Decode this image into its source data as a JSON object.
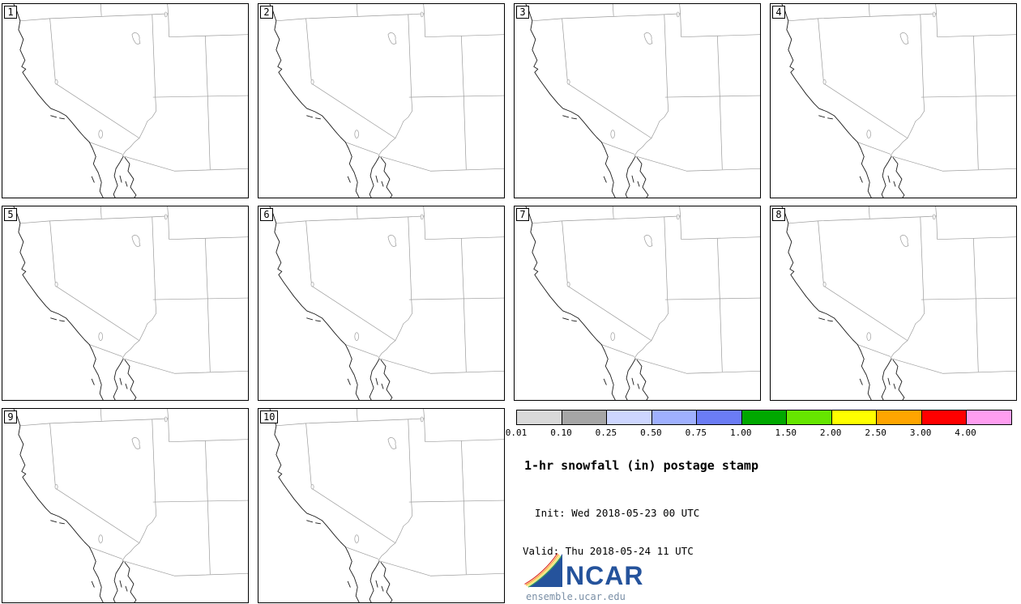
{
  "page": {
    "background": "#ffffff"
  },
  "panels": [
    {
      "label": "1"
    },
    {
      "label": "2"
    },
    {
      "label": "3"
    },
    {
      "label": "4"
    },
    {
      "label": "5"
    },
    {
      "label": "6"
    },
    {
      "label": "7"
    },
    {
      "label": "8"
    },
    {
      "label": "9"
    },
    {
      "label": "10"
    }
  ],
  "colorbar": {
    "labels": [
      "0.01",
      "0.10",
      "0.25",
      "0.50",
      "0.75",
      "1.00",
      "1.50",
      "2.00",
      "2.50",
      "3.00",
      "4.00"
    ],
    "colors": [
      "#d9d9d9",
      "#a6a6a6",
      "#cdd6ff",
      "#9fb0ff",
      "#6b7cf5",
      "#00a800",
      "#66e600",
      "#ffff00",
      "#ffa500",
      "#ff0000",
      "#ff9ef0"
    ]
  },
  "info": {
    "title": "1-hr snowfall (in) postage stamp",
    "init_line": "  Init: Wed 2018-05-23 00 UTC",
    "valid_line": "Valid: Thu 2018-05-24 11 UTC",
    "logo_text": "NCAR",
    "logo_color": "#25539c",
    "site_url": "ensemble.ucar.edu",
    "site_url_color": "#7a8fa6"
  }
}
